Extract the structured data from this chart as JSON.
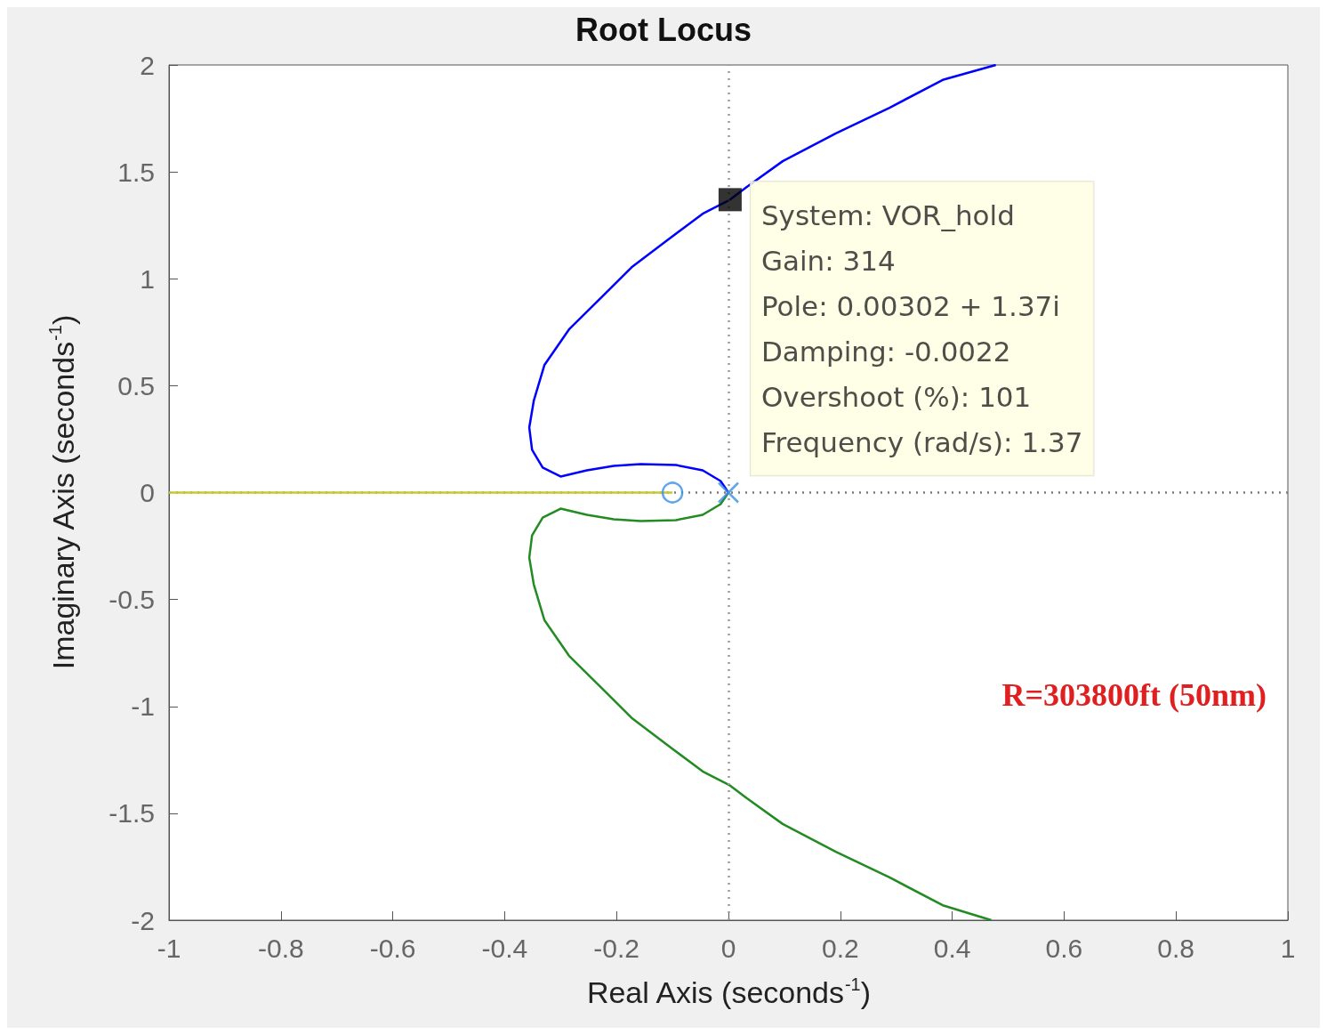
{
  "chart_data": {
    "type": "line",
    "title": "Root Locus",
    "xlabel": "Real Axis (seconds$^{-1}$)",
    "ylabel": "Imaginary Axis (seconds$^{-1}$)",
    "xlim": [
      -1,
      1
    ],
    "ylim": [
      -2,
      2
    ],
    "xticks": [
      -1,
      -0.8,
      -0.6,
      -0.4,
      -0.2,
      0,
      0.2,
      0.4,
      0.6,
      0.8,
      1
    ],
    "yticks": [
      -2,
      -1.5,
      -1,
      -0.5,
      0,
      0.5,
      1,
      1.5,
      2
    ],
    "grid": false,
    "series": [
      {
        "color": "#0000ff",
        "x": [
          0,
          -0.014,
          -0.046,
          -0.094,
          -0.157,
          -0.205,
          -0.253,
          -0.3,
          -0.332,
          -0.351,
          -0.356,
          -0.348,
          -0.329,
          -0.285,
          -0.221,
          -0.173,
          -0.11,
          -0.046,
          0.003,
          0.033,
          0.097,
          0.192,
          0.288,
          0.383,
          0.478
        ],
        "values": [
          0,
          0.054,
          0.104,
          0.129,
          0.133,
          0.125,
          0.104,
          0.075,
          0.117,
          0.2,
          0.304,
          0.429,
          0.596,
          0.763,
          0.929,
          1.054,
          1.179,
          1.304,
          1.37,
          1.43,
          1.55,
          1.68,
          1.8,
          1.93,
          2
        ]
      },
      {
        "color": "#228b22",
        "x": [
          0,
          -0.014,
          -0.046,
          -0.094,
          -0.157,
          -0.205,
          -0.253,
          -0.3,
          -0.332,
          -0.351,
          -0.356,
          -0.348,
          -0.329,
          -0.285,
          -0.221,
          -0.173,
          -0.11,
          -0.046,
          0.003,
          0.033,
          0.097,
          0.192,
          0.288,
          0.383,
          0.47
        ],
        "values": [
          0,
          -0.054,
          -0.104,
          -0.129,
          -0.133,
          -0.125,
          -0.104,
          -0.075,
          -0.117,
          -0.2,
          -0.304,
          -0.429,
          -0.596,
          -0.763,
          -0.929,
          -1.054,
          -1.179,
          -1.304,
          -1.37,
          -1.43,
          -1.55,
          -1.68,
          -1.8,
          -1.93,
          -2
        ]
      },
      {
        "color": "#c8c832",
        "x": [
          -1,
          -0.1
        ],
        "values": [
          0,
          0
        ]
      },
      {
        "type": "scatter",
        "marker": "circle",
        "color": "#3a8ee6",
        "x": [
          -0.1
        ],
        "values": [
          0
        ]
      },
      {
        "type": "scatter",
        "marker": "cross",
        "color": "#3a8ee6",
        "x": [
          0
        ],
        "values": [
          0
        ]
      }
    ],
    "ref_lines": [
      {
        "axis": "x",
        "value": 0,
        "color": "#9a9a9a",
        "line_style": "dotted"
      },
      {
        "axis": "y",
        "value": 0,
        "color": "#7a7a7a",
        "line_style": "dotted"
      }
    ],
    "annotations": [
      {
        "text": "System: VOR_hold\nGain: 314\nPole: 0.00302 + 1.37i\nDamping: -0.0022\nOvershoot (%): 101\nFrequency (rad/s): 1.37",
        "x": 0.00302,
        "y": 1.37
      },
      "R=303800ft (50nm)"
    ]
  }
}
